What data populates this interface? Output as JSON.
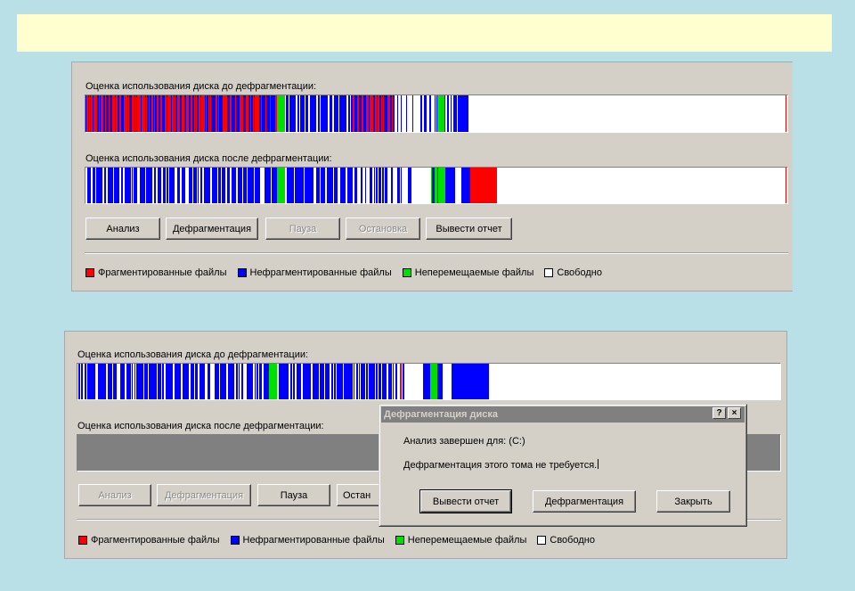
{
  "top_panel": {
    "before_label": "Оценка использования диска до дефрагментации:",
    "after_label": "Оценка использования диска после дефрагментации:",
    "buttons": {
      "analyze": "Анализ",
      "defrag": "Дефрагментация",
      "pause": "Пауза",
      "stop": "Остановка",
      "report": "Вывести отчет"
    }
  },
  "bottom_panel": {
    "before_label": "Оценка использования диска до дефрагментации:",
    "after_label": "Оценка использования диска после дефрагментации:",
    "buttons": {
      "analyze": "Анализ",
      "defrag": "Дефрагментация",
      "pause": "Пауза",
      "stop": "Остан"
    }
  },
  "legend": {
    "fragmented": "Фрагментированные файлы",
    "unfragmented": "Нефрагментированные файлы",
    "unmovable": "Неперемещаемые файлы",
    "free": "Свободно"
  },
  "dialog": {
    "title": "Дефрагментация диска",
    "help_label": "?",
    "close_label": "×",
    "line1": "Анализ завершен для: (C:)",
    "line2": "Дефрагментация этого тома не требуется.",
    "buttons": {
      "report": "Вывести отчет",
      "defrag": "Дефрагментация",
      "close": "Закрыть"
    }
  },
  "colors": {
    "fragmented": "#ff0000",
    "unfragmented": "#0000ff",
    "unmovable": "#00e000",
    "free": "#ffffff"
  }
}
